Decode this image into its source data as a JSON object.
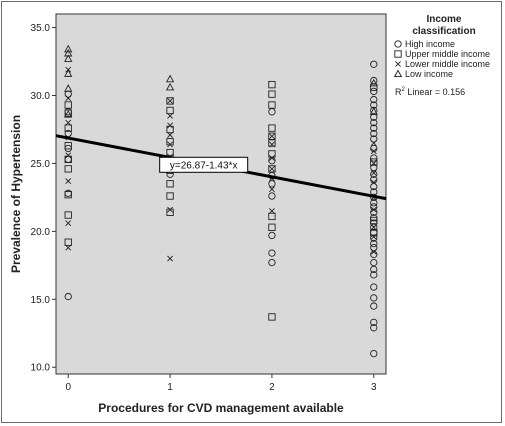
{
  "chart_data": {
    "type": "scatter",
    "xlabel": "Procedures for CVD management available",
    "ylabel": "Prevalence of Hypertension",
    "xlim": [
      -0.12,
      3.12
    ],
    "ylim": [
      9.5,
      36.0
    ],
    "x_ticks": [
      0,
      1,
      2,
      3
    ],
    "x_tick_labels": [
      "0",
      "1",
      "2",
      "3"
    ],
    "y_ticks": [
      10,
      15,
      20,
      25,
      30,
      35
    ],
    "y_tick_labels": [
      "10.0",
      "15.0",
      "20.0",
      "25.0",
      "30.0",
      "35.0"
    ],
    "plot_background": "#d9d9d9",
    "grid": false,
    "legend": {
      "title": "Income classification",
      "placement": "right",
      "r2_label": "Linear = 0.156",
      "r2_prefix": "R",
      "r2_sup": "2"
    },
    "series": [
      {
        "name": "High income",
        "marker": "circle",
        "points": [
          [
            0,
            15.2
          ],
          [
            0,
            22.8
          ],
          [
            0,
            25.3
          ],
          [
            0,
            26.1
          ],
          [
            0,
            27.2
          ],
          [
            0,
            28.8
          ],
          [
            0,
            30.1
          ],
          [
            1,
            24.2
          ],
          [
            2,
            17.7
          ],
          [
            2,
            18.4
          ],
          [
            2,
            19.7
          ],
          [
            2,
            22.6
          ],
          [
            2,
            23.5
          ],
          [
            2,
            24.1
          ],
          [
            2,
            25.2
          ],
          [
            2,
            28.8
          ],
          [
            3,
            11.0
          ],
          [
            3,
            12.9
          ],
          [
            3,
            13.3
          ],
          [
            3,
            14.5
          ],
          [
            3,
            15.1
          ],
          [
            3,
            15.9
          ],
          [
            3,
            16.8
          ],
          [
            3,
            17.2
          ],
          [
            3,
            17.7
          ],
          [
            3,
            18.3
          ],
          [
            3,
            18.8
          ],
          [
            3,
            19.1
          ],
          [
            3,
            19.5
          ],
          [
            3,
            19.9
          ],
          [
            3,
            20.3
          ],
          [
            3,
            20.6
          ],
          [
            3,
            21.0
          ],
          [
            3,
            21.4
          ],
          [
            3,
            21.8
          ],
          [
            3,
            22.1
          ],
          [
            3,
            22.5
          ],
          [
            3,
            22.9
          ],
          [
            3,
            23.3
          ],
          [
            3,
            23.8
          ],
          [
            3,
            24.2
          ],
          [
            3,
            24.7
          ],
          [
            3,
            25.4
          ],
          [
            3,
            26.1
          ],
          [
            3,
            26.8
          ],
          [
            3,
            27.2
          ],
          [
            3,
            27.6
          ],
          [
            3,
            28.0
          ],
          [
            3,
            28.4
          ],
          [
            3,
            28.9
          ],
          [
            3,
            29.3
          ],
          [
            3,
            29.7
          ],
          [
            3,
            30.3
          ],
          [
            3,
            31.1
          ],
          [
            3,
            32.3
          ]
        ]
      },
      {
        "name": "Upper middle income",
        "marker": "square",
        "points": [
          [
            0,
            19.2
          ],
          [
            0,
            21.2
          ],
          [
            0,
            22.7
          ],
          [
            0,
            24.6
          ],
          [
            0,
            25.3
          ],
          [
            0,
            26.3
          ],
          [
            0,
            27.6
          ],
          [
            0,
            28.7
          ],
          [
            0,
            29.3
          ],
          [
            1,
            21.4
          ],
          [
            1,
            22.6
          ],
          [
            1,
            23.5
          ],
          [
            1,
            24.5
          ],
          [
            1,
            25.8
          ],
          [
            1,
            26.6
          ],
          [
            1,
            27.5
          ],
          [
            1,
            28.9
          ],
          [
            1,
            29.6
          ],
          [
            2,
            13.7
          ],
          [
            2,
            20.3
          ],
          [
            2,
            21.1
          ],
          [
            2,
            24.6
          ],
          [
            2,
            25.7
          ],
          [
            2,
            26.5
          ],
          [
            2,
            27.0
          ],
          [
            2,
            27.6
          ],
          [
            2,
            29.3
          ],
          [
            2,
            30.1
          ],
          [
            2,
            30.8
          ],
          [
            3,
            19.9
          ],
          [
            3,
            20.8
          ],
          [
            3,
            25.1
          ],
          [
            3,
            30.6
          ]
        ]
      },
      {
        "name": "Lower middle income",
        "marker": "cross",
        "points": [
          [
            0,
            18.8
          ],
          [
            0,
            20.6
          ],
          [
            0,
            23.7
          ],
          [
            0,
            25.6
          ],
          [
            0,
            26.9
          ],
          [
            0,
            28.0
          ],
          [
            0,
            29.8
          ],
          [
            0,
            31.9
          ],
          [
            1,
            18.0
          ],
          [
            1,
            21.6
          ],
          [
            1,
            24.8
          ],
          [
            1,
            25.5
          ],
          [
            1,
            26.4
          ],
          [
            1,
            27.1
          ],
          [
            1,
            27.8
          ],
          [
            1,
            28.5
          ],
          [
            1,
            29.6
          ],
          [
            2,
            21.5
          ],
          [
            2,
            23.1
          ],
          [
            2,
            23.9
          ],
          [
            2,
            24.6
          ],
          [
            2,
            25.4
          ],
          [
            2,
            26.4
          ],
          [
            2,
            27.0
          ],
          [
            3,
            18.5
          ],
          [
            3,
            19.6
          ],
          [
            3,
            20.3
          ],
          [
            3,
            21.6
          ],
          [
            3,
            22.5
          ],
          [
            3,
            23.6
          ],
          [
            3,
            24.3
          ],
          [
            3,
            25.0
          ],
          [
            3,
            25.9
          ],
          [
            3,
            26.5
          ]
        ]
      },
      {
        "name": "Low income",
        "marker": "triangle",
        "points": [
          [
            0,
            30.5
          ],
          [
            0,
            31.6
          ],
          [
            0,
            32.7
          ],
          [
            0,
            33.1
          ],
          [
            0,
            33.4
          ],
          [
            0,
            28.6
          ],
          [
            1,
            30.6
          ],
          [
            1,
            31.2
          ],
          [
            3,
            28.8
          ],
          [
            3,
            30.9
          ]
        ]
      }
    ],
    "fit_line": {
      "intercept": 26.87,
      "slope": -1.43,
      "label": "y=26.87-1.43*x",
      "label_anchor": [
        1.33,
        24.9
      ]
    }
  }
}
